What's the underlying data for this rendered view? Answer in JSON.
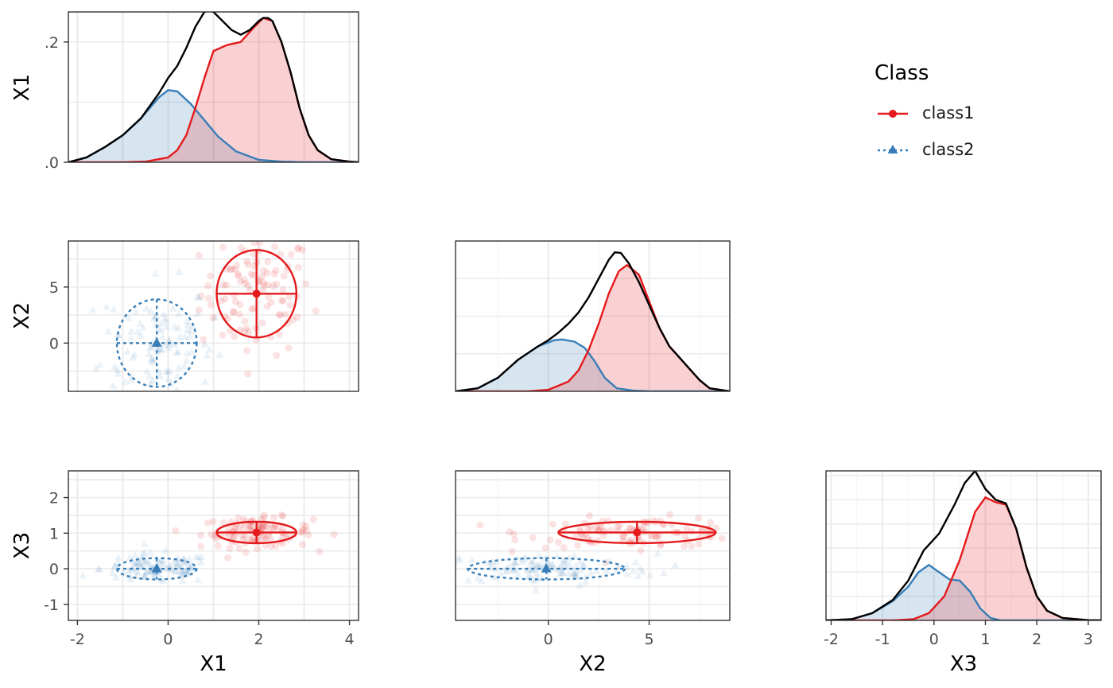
{
  "legend": {
    "title": "Class",
    "entries": [
      {
        "label": "class1",
        "color": "#e41a1c",
        "line": "solid",
        "marker": "circle"
      },
      {
        "label": "class2",
        "color": "#377eb8",
        "line": "dotted",
        "marker": "triangle"
      }
    ]
  },
  "colors": {
    "class1": "#e41a1c",
    "class2": "#377eb8",
    "overall": "#000000",
    "grid_major": "#ebebeb",
    "grid_minor": "#f5f5f5"
  },
  "chart_data": [
    {
      "type": "area",
      "panel": "X1 density",
      "row_label": "X1",
      "xlim": [
        -2.2,
        4.2
      ],
      "ylim": [
        0,
        0.25
      ],
      "y_ticks": [
        {
          "value": 0,
          "label": ".0"
        },
        {
          "value": 0.2,
          "label": ".2"
        }
      ],
      "x_grid": [
        -2,
        -1,
        0,
        1,
        2,
        3,
        4
      ],
      "y_grid": [
        0,
        0.1,
        0.2
      ],
      "series": [
        {
          "name": "class2",
          "x": [
            -2.2,
            -1.8,
            -1.4,
            -1.0,
            -0.6,
            -0.2,
            0.0,
            0.2,
            0.5,
            0.8,
            1.1,
            1.5,
            2.0,
            2.5,
            3.0,
            3.5,
            4.2
          ],
          "y": [
            0.0,
            0.008,
            0.025,
            0.045,
            0.073,
            0.108,
            0.12,
            0.118,
            0.097,
            0.07,
            0.043,
            0.018,
            0.004,
            0.001,
            0,
            0,
            0
          ]
        },
        {
          "name": "class1",
          "x": [
            -2.2,
            -1.0,
            -0.5,
            0.0,
            0.2,
            0.4,
            0.6,
            0.8,
            1.0,
            1.3,
            1.6,
            1.9,
            2.1,
            2.3,
            2.5,
            2.7,
            2.9,
            3.1,
            3.3,
            3.6,
            4.0,
            4.2
          ],
          "y": [
            0,
            0,
            0.001,
            0.008,
            0.02,
            0.045,
            0.09,
            0.14,
            0.185,
            0.195,
            0.2,
            0.225,
            0.24,
            0.235,
            0.2,
            0.15,
            0.09,
            0.045,
            0.02,
            0.005,
            0.001,
            0
          ]
        },
        {
          "name": "overall",
          "x": [
            -2.2,
            -1.8,
            -1.4,
            -1.0,
            -0.6,
            -0.2,
            0.0,
            0.2,
            0.4,
            0.6,
            0.8,
            0.9,
            1.0,
            1.2,
            1.4,
            1.6,
            1.8,
            2.0,
            2.1,
            2.2,
            2.3,
            2.5,
            2.7,
            2.9,
            3.1,
            3.3,
            3.6,
            4.0,
            4.2
          ],
          "y": [
            0,
            0.008,
            0.025,
            0.045,
            0.073,
            0.115,
            0.14,
            0.16,
            0.19,
            0.225,
            0.25,
            0.252,
            0.25,
            0.235,
            0.22,
            0.212,
            0.22,
            0.235,
            0.24,
            0.24,
            0.235,
            0.2,
            0.15,
            0.09,
            0.045,
            0.02,
            0.005,
            0.001,
            0
          ]
        }
      ]
    },
    {
      "type": "scatter",
      "panel": "X2 vs X1",
      "row_label": "X2",
      "xlim": [
        -2.2,
        4.2
      ],
      "ylim": [
        -4.3,
        9.1
      ],
      "y_ticks": [
        {
          "value": 0,
          "label": "0"
        },
        {
          "value": 5,
          "label": "5"
        }
      ],
      "x_grid": [
        -2,
        -1,
        0,
        1,
        2,
        3,
        4
      ],
      "y_grid": [
        -2.5,
        0,
        2.5,
        5,
        7.5
      ],
      "means": [
        {
          "name": "class1",
          "x": 1.95,
          "y": 4.4,
          "sx": 0.88,
          "sy": 3.9
        },
        {
          "name": "class2",
          "x": -0.25,
          "y": 0.0,
          "sx": 0.88,
          "sy": 3.9
        }
      ]
    },
    {
      "type": "area",
      "panel": "X2 density",
      "xlim": [
        -4.6,
        9.0
      ],
      "ylim": [
        0,
        0.2
      ],
      "x_grid": [
        -2.5,
        0,
        2.5,
        5,
        7.5
      ],
      "y_grid": [
        0,
        0.05,
        0.1,
        0.15
      ],
      "series": [
        {
          "name": "class2",
          "x": [
            -4.6,
            -3.5,
            -2.5,
            -1.5,
            -0.5,
            0.3,
            0.7,
            1.3,
            1.8,
            2.3,
            2.8,
            3.4,
            4.2,
            5.0,
            9.0
          ],
          "y": [
            0,
            0.004,
            0.018,
            0.042,
            0.06,
            0.068,
            0.069,
            0.066,
            0.058,
            0.04,
            0.018,
            0.004,
            0.001,
            0,
            0
          ]
        },
        {
          "name": "class1",
          "x": [
            -4.6,
            -1.0,
            0.0,
            1.0,
            1.5,
            2.0,
            2.5,
            3.0,
            3.5,
            3.9,
            4.5,
            5.0,
            5.5,
            6.0,
            6.5,
            7.0,
            7.5,
            8.0,
            9.0
          ],
          "y": [
            0,
            0,
            0.002,
            0.013,
            0.028,
            0.055,
            0.09,
            0.13,
            0.16,
            0.168,
            0.155,
            0.12,
            0.085,
            0.06,
            0.045,
            0.03,
            0.015,
            0.004,
            0
          ]
        },
        {
          "name": "overall",
          "x": [
            -4.6,
            -3.5,
            -2.5,
            -1.5,
            -0.5,
            0.0,
            0.5,
            1.0,
            1.5,
            2.0,
            2.5,
            3.0,
            3.3,
            3.6,
            4.0,
            4.5,
            5.0,
            5.5,
            6.0,
            6.5,
            7.0,
            7.5,
            8.0,
            9.0
          ],
          "y": [
            0,
            0.004,
            0.018,
            0.042,
            0.06,
            0.068,
            0.078,
            0.09,
            0.105,
            0.125,
            0.15,
            0.175,
            0.185,
            0.184,
            0.17,
            0.145,
            0.115,
            0.085,
            0.06,
            0.045,
            0.03,
            0.015,
            0.004,
            0
          ]
        }
      ]
    },
    {
      "type": "scatter",
      "panel": "X3 vs X1",
      "row_label": "X3",
      "xlabel": "X1",
      "xlim": [
        -2.2,
        4.2
      ],
      "ylim": [
        -1.45,
        2.75
      ],
      "x_ticks": [
        {
          "value": -2,
          "label": "-2"
        },
        {
          "value": 0,
          "label": "0"
        },
        {
          "value": 2,
          "label": "2"
        },
        {
          "value": 4,
          "label": "4"
        }
      ],
      "y_ticks": [
        {
          "value": -1,
          "label": "-1"
        },
        {
          "value": 0,
          "label": "0"
        },
        {
          "value": 1,
          "label": "1"
        },
        {
          "value": 2,
          "label": "2"
        }
      ],
      "x_grid": [
        -2,
        -1,
        0,
        1,
        2,
        3,
        4
      ],
      "y_grid": [
        -1,
        -0.5,
        0,
        0.5,
        1,
        1.5,
        2,
        2.5
      ],
      "means": [
        {
          "name": "class1",
          "x": 1.95,
          "y": 1.02,
          "sx": 0.88,
          "sy": 0.3
        },
        {
          "name": "class2",
          "x": -0.25,
          "y": 0.0,
          "sx": 0.88,
          "sy": 0.3
        }
      ]
    },
    {
      "type": "scatter",
      "panel": "X3 vs X2",
      "xlabel": "X2",
      "xlim": [
        -4.6,
        9.0
      ],
      "ylim": [
        -1.45,
        2.75
      ],
      "x_ticks": [
        {
          "value": 0,
          "label": "0"
        },
        {
          "value": 5,
          "label": "5"
        }
      ],
      "x_grid": [
        -2.5,
        0,
        2.5,
        5,
        7.5
      ],
      "y_grid": [
        -1,
        -0.5,
        0,
        0.5,
        1,
        1.5,
        2,
        2.5
      ],
      "means": [
        {
          "name": "class1",
          "x": 4.4,
          "y": 1.02,
          "sx": 3.9,
          "sy": 0.3
        },
        {
          "name": "class2",
          "x": -0.1,
          "y": 0.0,
          "sx": 3.9,
          "sy": 0.3
        }
      ]
    },
    {
      "type": "area",
      "panel": "X3 density",
      "xlabel": "X3",
      "xlim": [
        -2.1,
        3.25
      ],
      "ylim": [
        0,
        0.62
      ],
      "x_ticks": [
        {
          "value": -2,
          "label": "-2"
        },
        {
          "value": -1,
          "label": "-1"
        },
        {
          "value": 0,
          "label": "0"
        },
        {
          "value": 1,
          "label": "1"
        },
        {
          "value": 2,
          "label": "2"
        },
        {
          "value": 3,
          "label": "3"
        }
      ],
      "x_grid": [
        -2,
        -1.5,
        -1,
        -0.5,
        0,
        0.5,
        1,
        1.5,
        2,
        2.5,
        3
      ],
      "y_grid": [
        0,
        0.1,
        0.2,
        0.3,
        0.4,
        0.5,
        0.6
      ],
      "series": [
        {
          "name": "class2",
          "x": [
            -2.1,
            -1.6,
            -1.2,
            -0.8,
            -0.5,
            -0.3,
            -0.1,
            0.1,
            0.3,
            0.5,
            0.7,
            0.9,
            1.1,
            1.3,
            3.25
          ],
          "y": [
            0,
            0.005,
            0.03,
            0.08,
            0.14,
            0.2,
            0.23,
            0.2,
            0.17,
            0.165,
            0.12,
            0.05,
            0.01,
            0,
            0
          ]
        },
        {
          "name": "class1",
          "x": [
            -2.1,
            -0.8,
            -0.4,
            -0.1,
            0.2,
            0.5,
            0.8,
            1.0,
            1.2,
            1.4,
            1.6,
            1.8,
            2.0,
            2.2,
            2.5,
            3.0,
            3.25
          ],
          "y": [
            0,
            0,
            0.005,
            0.03,
            0.1,
            0.25,
            0.45,
            0.51,
            0.49,
            0.48,
            0.38,
            0.22,
            0.1,
            0.04,
            0.01,
            0.001,
            0
          ]
        },
        {
          "name": "overall",
          "x": [
            -2.1,
            -1.6,
            -1.2,
            -0.8,
            -0.5,
            -0.2,
            0.1,
            0.4,
            0.6,
            0.8,
            1.0,
            1.2,
            1.4,
            1.6,
            1.8,
            2.0,
            2.2,
            2.5,
            3.0,
            3.25
          ],
          "y": [
            0,
            0.005,
            0.03,
            0.085,
            0.165,
            0.29,
            0.36,
            0.48,
            0.57,
            0.62,
            0.545,
            0.5,
            0.485,
            0.38,
            0.22,
            0.1,
            0.04,
            0.01,
            0.001,
            0
          ]
        }
      ]
    }
  ]
}
